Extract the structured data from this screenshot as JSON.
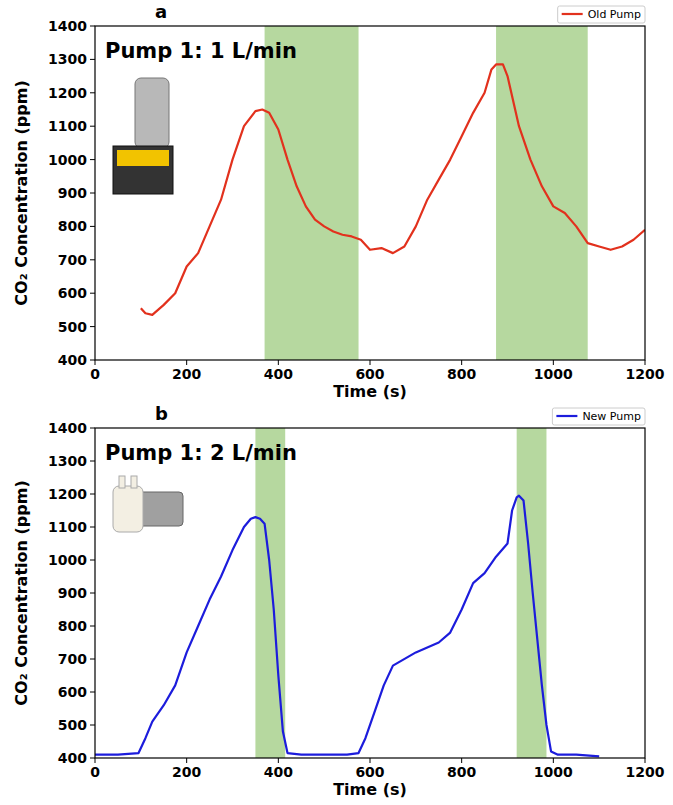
{
  "chart_data": [
    {
      "type": "line",
      "panel": "a",
      "title": "Pump 1: 1 L/min",
      "x_label": "Time (s)",
      "y_label": "CO₂ Concentration (ppm)",
      "xlim": [
        0,
        1200
      ],
      "xticks": [
        0,
        200,
        400,
        600,
        800,
        1000,
        1200
      ],
      "ylim": [
        400,
        1400
      ],
      "yticks": [
        400,
        500,
        600,
        700,
        800,
        900,
        1000,
        1100,
        1200,
        1300,
        1400
      ],
      "grid": false,
      "legend": "above",
      "highlight_ranges": [
        [
          370,
          575
        ],
        [
          875,
          1075
        ]
      ],
      "x": [
        100,
        110,
        125,
        150,
        175,
        200,
        225,
        250,
        275,
        300,
        325,
        350,
        365,
        380,
        400,
        420,
        440,
        460,
        480,
        500,
        520,
        540,
        560,
        580,
        600,
        625,
        650,
        675,
        700,
        725,
        750,
        775,
        800,
        825,
        850,
        865,
        875,
        890,
        900,
        925,
        950,
        975,
        1000,
        1025,
        1050,
        1075,
        1100,
        1125,
        1150,
        1175,
        1200
      ],
      "series": [
        {
          "name": "Old Pump",
          "color": "#e2311d",
          "values": [
            555,
            540,
            535,
            565,
            600,
            680,
            720,
            800,
            880,
            1000,
            1100,
            1145,
            1150,
            1140,
            1090,
            1000,
            920,
            860,
            820,
            800,
            785,
            775,
            770,
            760,
            730,
            735,
            720,
            740,
            800,
            880,
            940,
            1000,
            1070,
            1140,
            1200,
            1270,
            1285,
            1285,
            1250,
            1100,
            1000,
            920,
            860,
            840,
            800,
            750,
            740,
            730,
            740,
            760,
            790
          ]
        }
      ]
    },
    {
      "type": "line",
      "panel": "b",
      "title": "Pump 1: 2 L/min",
      "x_label": "Time (s)",
      "y_label": "CO₂ Concentration (ppm)",
      "xlim": [
        0,
        1200
      ],
      "xticks": [
        0,
        200,
        400,
        600,
        800,
        1000,
        1200
      ],
      "ylim": [
        400,
        1400
      ],
      "yticks": [
        400,
        500,
        600,
        700,
        800,
        900,
        1000,
        1100,
        1200,
        1300,
        1400
      ],
      "grid": false,
      "legend": "above",
      "highlight_ranges": [
        [
          350,
          415
        ],
        [
          920,
          985
        ]
      ],
      "x": [
        0,
        50,
        95,
        110,
        125,
        150,
        175,
        200,
        225,
        250,
        275,
        300,
        325,
        340,
        350,
        360,
        370,
        380,
        390,
        400,
        410,
        420,
        450,
        500,
        550,
        575,
        590,
        610,
        630,
        650,
        700,
        750,
        775,
        800,
        825,
        850,
        875,
        900,
        910,
        920,
        925,
        935,
        945,
        955,
        965,
        975,
        985,
        995,
        1010,
        1050,
        1100
      ],
      "series": [
        {
          "name": "New Pump",
          "color": "#1c1cdc",
          "values": [
            410,
            410,
            415,
            460,
            510,
            560,
            620,
            720,
            800,
            880,
            950,
            1030,
            1100,
            1125,
            1130,
            1125,
            1110,
            1000,
            850,
            650,
            480,
            415,
            410,
            410,
            410,
            415,
            460,
            540,
            620,
            680,
            720,
            750,
            780,
            850,
            930,
            960,
            1010,
            1050,
            1150,
            1190,
            1195,
            1180,
            1050,
            900,
            760,
            620,
            500,
            420,
            410,
            410,
            405
          ]
        }
      ]
    }
  ]
}
